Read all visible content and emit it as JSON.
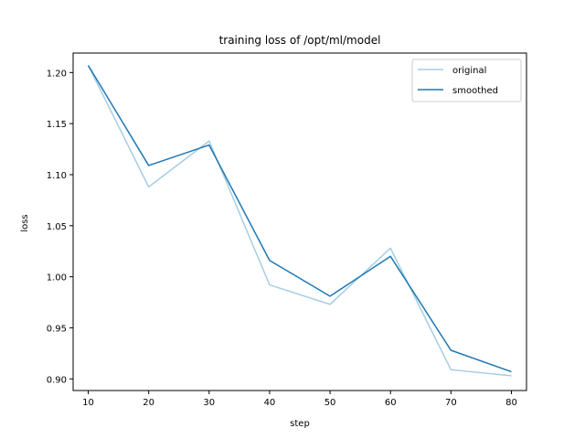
{
  "chart_data": {
    "type": "line",
    "title": "training loss of /opt/ml/model",
    "xlabel": "step",
    "ylabel": "loss",
    "x": [
      10,
      20,
      30,
      40,
      50,
      60,
      70,
      80
    ],
    "xlim": [
      7.5,
      82.5
    ],
    "ylim": [
      0.8886,
      1.2191
    ],
    "xticks": [
      10,
      20,
      30,
      40,
      50,
      60,
      70,
      80
    ],
    "yticks": [
      0.9,
      0.95,
      1.0,
      1.05,
      1.1,
      1.15,
      1.2
    ],
    "ytick_labels": [
      "0.90",
      "0.95",
      "1.00",
      "1.05",
      "1.10",
      "1.15",
      "1.20"
    ],
    "grid": false,
    "legend_position": "upper right",
    "series": [
      {
        "name": "original",
        "color": "#a6cee3",
        "values": [
          1.207,
          1.088,
          1.133,
          0.992,
          0.973,
          1.028,
          0.909,
          0.903
        ]
      },
      {
        "name": "smoothed",
        "color": "#1f78b4",
        "values": [
          1.207,
          1.109,
          1.129,
          1.016,
          0.981,
          1.02,
          0.928,
          0.907
        ]
      }
    ]
  }
}
